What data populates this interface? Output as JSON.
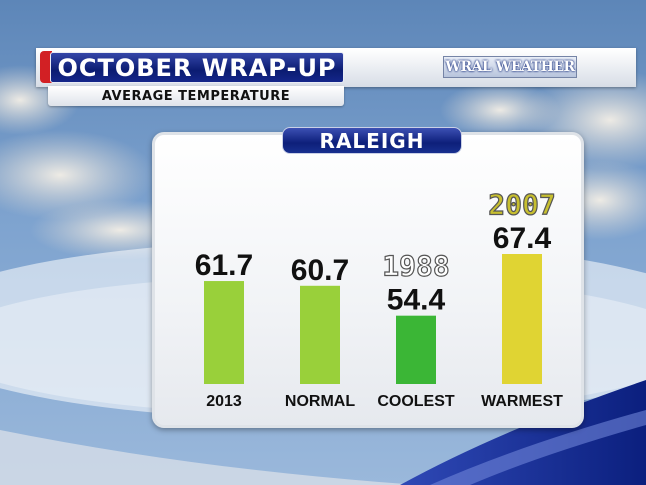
{
  "header": {
    "title": "OCTOBER WRAP-UP",
    "subtitle": "AVERAGE TEMPERATURE",
    "logo_text": "WRAL WEATHER",
    "city": "RALEIGH"
  },
  "colors": {
    "title_bg": "#0b1c72",
    "accent_red": "#d22024",
    "bar_lightgreen": "#a3dd3e",
    "bar_green": "#3fc23a",
    "bar_yellow": "#efe237"
  },
  "chart_data": {
    "type": "bar",
    "title": "OCTOBER WRAP-UP",
    "subtitle": "AVERAGE TEMPERATURE",
    "categories": [
      "2013",
      "NORMAL",
      "COOLEST",
      "WARMEST"
    ],
    "values": [
      61.7,
      60.7,
      54.4,
      67.4
    ],
    "year_labels": [
      "",
      "",
      "1988",
      "2007"
    ],
    "bar_colors": [
      "#a3dd3e",
      "#a3dd3e",
      "#3fc23a",
      "#efe237"
    ],
    "xlabel": "",
    "ylabel": "",
    "grid": false,
    "legend": "none"
  }
}
